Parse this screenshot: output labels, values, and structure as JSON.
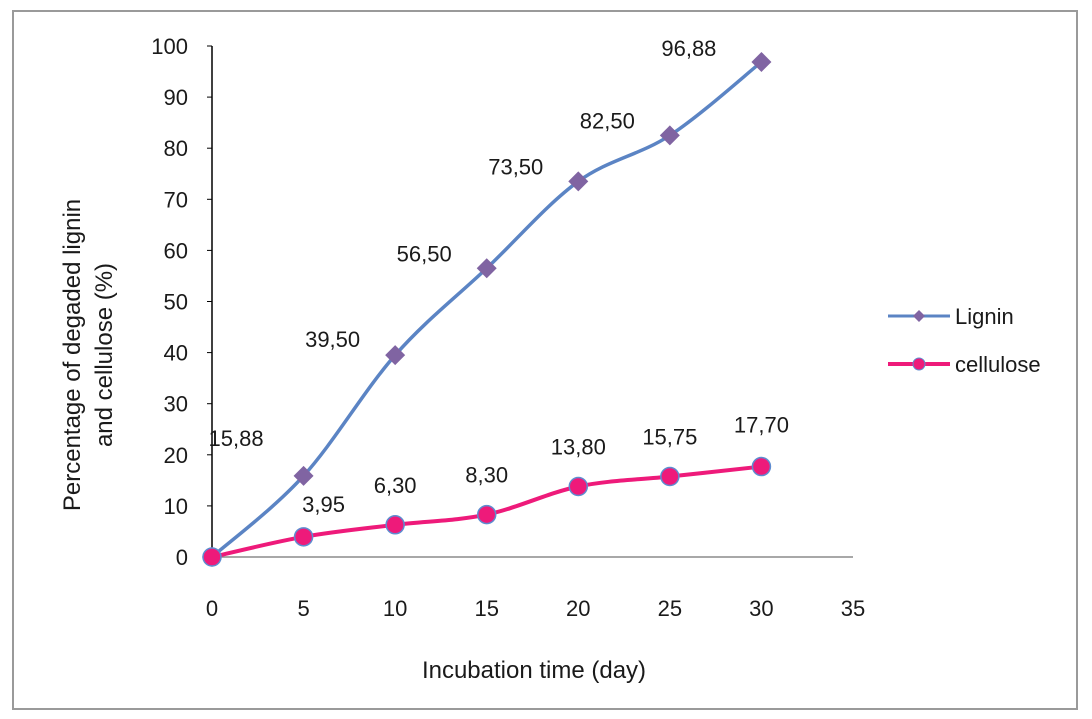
{
  "chart_data": {
    "type": "line",
    "title": "",
    "xlabel": "Incubation  time (day)",
    "ylabel_line1": "Percentage  of  degaded  lignin",
    "ylabel_line2": "and  cellulose  (%)",
    "xlim": [
      0,
      35
    ],
    "ylim": [
      0,
      100
    ],
    "x_ticks": [
      0,
      5,
      10,
      15,
      20,
      25,
      30,
      35
    ],
    "y_ticks": [
      0,
      10,
      20,
      30,
      40,
      50,
      60,
      70,
      80,
      90,
      100
    ],
    "grid": false,
    "legend_position": "right",
    "series": [
      {
        "name": "Lignin",
        "color": "#5b84c4",
        "marker": "diamond",
        "marker_color": "#8064a2",
        "x": [
          0,
          5,
          10,
          15,
          20,
          25,
          30
        ],
        "y": [
          0,
          15.88,
          39.5,
          56.5,
          73.5,
          82.5,
          96.88
        ],
        "labels": [
          "",
          "15,88",
          "39,50",
          "56,50",
          "73,50",
          "82,50",
          "96,88"
        ]
      },
      {
        "name": "cellulose",
        "color": "#ee1a7a",
        "marker": "circle",
        "marker_color": "#ee1a7a",
        "x": [
          0,
          5,
          10,
          15,
          20,
          25,
          30
        ],
        "y": [
          0,
          3.95,
          6.3,
          8.3,
          13.8,
          15.75,
          17.7
        ],
        "labels": [
          "",
          "3,95",
          "6,30",
          "8,30",
          "13,80",
          "15,75",
          "17,70"
        ]
      }
    ]
  }
}
